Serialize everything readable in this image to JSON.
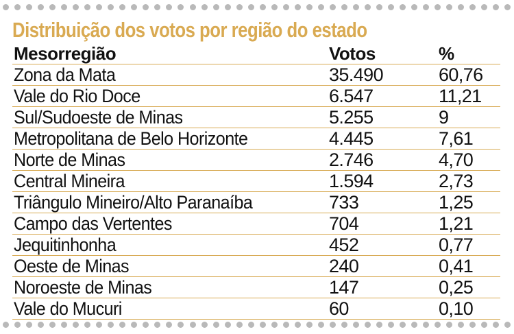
{
  "title": "Distribuição dos votos por região do estado",
  "colors": {
    "title": "#d9aa52",
    "rule": "#d7a951",
    "dots": "#b9b9b9",
    "text": "#111111"
  },
  "table": {
    "headers": [
      "Mesorregião",
      "Votos",
      "%"
    ],
    "rows": [
      [
        "Zona da Mata",
        "35.490",
        "60,76"
      ],
      [
        "Vale do Rio Doce",
        "6.547",
        "11,21"
      ],
      [
        "Sul/Sudoeste de Minas",
        "5.255",
        "9"
      ],
      [
        "Metropolitana de Belo Horizonte",
        "4.445",
        "7,61"
      ],
      [
        "Norte de Minas",
        "2.746",
        "4,70"
      ],
      [
        "Central Mineira",
        "1.594",
        "2,73"
      ],
      [
        "Triângulo Mineiro/Alto Paranaíba",
        "733",
        "1,25"
      ],
      [
        "Campo das Vertentes",
        "704",
        "1,21"
      ],
      [
        "Jequitinhonha",
        "452",
        "0,77"
      ],
      [
        "Oeste de Minas",
        "240",
        "0,41"
      ],
      [
        "Noroeste de Minas",
        "147",
        "0,25"
      ],
      [
        "Vale do Mucuri",
        "60",
        "0,10"
      ]
    ]
  }
}
